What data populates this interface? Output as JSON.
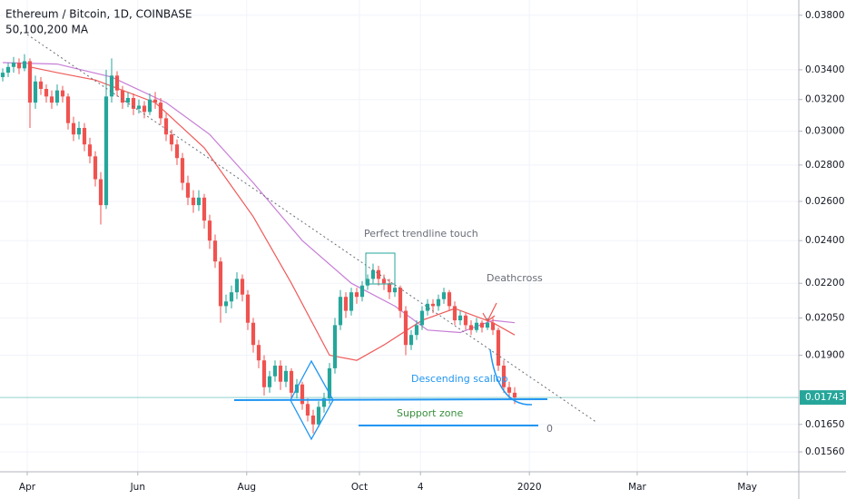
{
  "chart_data": {
    "type": "candlestick",
    "title": "Ethereum / Bitcoin, 1D, COINBASE",
    "subtitle": "50,100,200 MA",
    "log_scale": true,
    "grid": true,
    "up_color": "#26a69a",
    "down_color": "#ef5350",
    "xlim": [
      -0.5,
      146.17
    ],
    "xticks": [
      {
        "value": 4.5,
        "label": "Apr"
      },
      {
        "value": 24.8,
        "label": "Jun"
      },
      {
        "value": 44.8,
        "label": "Aug"
      },
      {
        "value": 65.5,
        "label": "Oct"
      },
      {
        "value": 76.7,
        "label": "4"
      },
      {
        "value": 96.7,
        "label": "2020"
      },
      {
        "value": 116.5,
        "label": "Mar"
      },
      {
        "value": 136.7,
        "label": "May"
      }
    ],
    "ylim": [
      0.01498,
      0.0392
    ],
    "yticks": [
      {
        "value": 0.038,
        "label": "0.03800"
      },
      {
        "value": 0.034,
        "label": "0.03400"
      },
      {
        "value": 0.032,
        "label": "0.03200"
      },
      {
        "value": 0.03,
        "label": "0.03000"
      },
      {
        "value": 0.028,
        "label": "0.02800"
      },
      {
        "value": 0.026,
        "label": "0.02600"
      },
      {
        "value": 0.024,
        "label": "0.02400"
      },
      {
        "value": 0.022,
        "label": "0.02200"
      },
      {
        "value": 0.0205,
        "label": "0.02050"
      },
      {
        "value": 0.019,
        "label": "0.01900"
      },
      {
        "value": 0.0165,
        "label": "0.01650"
      },
      {
        "value": 0.0156,
        "label": "0.01560"
      }
    ],
    "last_price": {
      "value": 0.01743,
      "label": "0.01743",
      "color": "#26a69a"
    },
    "ohlc": [
      [
        0.0335,
        0.0341,
        0.0332,
        0.0338
      ],
      [
        0.0338,
        0.0345,
        0.0335,
        0.0342
      ],
      [
        0.0342,
        0.0349,
        0.0338,
        0.0345
      ],
      [
        0.0345,
        0.0348,
        0.0337,
        0.0341
      ],
      [
        0.0341,
        0.0351,
        0.0339,
        0.0346
      ],
      [
        0.0346,
        0.0348,
        0.0302,
        0.0318
      ],
      [
        0.0318,
        0.0336,
        0.0314,
        0.0332
      ],
      [
        0.0332,
        0.0335,
        0.0323,
        0.0327
      ],
      [
        0.0327,
        0.033,
        0.0318,
        0.0322
      ],
      [
        0.0322,
        0.0326,
        0.0314,
        0.0318
      ],
      [
        0.0318,
        0.033,
        0.0316,
        0.0326
      ],
      [
        0.0326,
        0.0329,
        0.0318,
        0.0322
      ],
      [
        0.0322,
        0.0324,
        0.0301,
        0.0305
      ],
      [
        0.0305,
        0.0309,
        0.0294,
        0.0298
      ],
      [
        0.0298,
        0.0306,
        0.0295,
        0.0302
      ],
      [
        0.0302,
        0.0305,
        0.0288,
        0.0292
      ],
      [
        0.0292,
        0.0296,
        0.0281,
        0.0285
      ],
      [
        0.0285,
        0.0288,
        0.0268,
        0.0272
      ],
      [
        0.0272,
        0.0276,
        0.0248,
        0.0258
      ],
      [
        0.0258,
        0.034,
        0.0256,
        0.0322
      ],
      [
        0.0322,
        0.0348,
        0.0318,
        0.0336
      ],
      [
        0.0336,
        0.0339,
        0.0322,
        0.0326
      ],
      [
        0.0326,
        0.0329,
        0.0314,
        0.0318
      ],
      [
        0.0318,
        0.0325,
        0.0315,
        0.0321
      ],
      [
        0.0321,
        0.0324,
        0.031,
        0.0314
      ],
      [
        0.0314,
        0.032,
        0.0311,
        0.0316
      ],
      [
        0.0316,
        0.0319,
        0.0308,
        0.0312
      ],
      [
        0.0312,
        0.0324,
        0.031,
        0.032
      ],
      [
        0.032,
        0.0325,
        0.0314,
        0.0318
      ],
      [
        0.0318,
        0.0321,
        0.0304,
        0.0308
      ],
      [
        0.0308,
        0.0311,
        0.0294,
        0.0298
      ],
      [
        0.0298,
        0.0301,
        0.0288,
        0.0292
      ],
      [
        0.0292,
        0.0295,
        0.028,
        0.0284
      ],
      [
        0.0284,
        0.0287,
        0.0266,
        0.027
      ],
      [
        0.027,
        0.0274,
        0.0258,
        0.0262
      ],
      [
        0.0262,
        0.0266,
        0.0254,
        0.0258
      ],
      [
        0.0258,
        0.0266,
        0.0255,
        0.0262
      ],
      [
        0.0262,
        0.0264,
        0.0246,
        0.025
      ],
      [
        0.025,
        0.0253,
        0.0236,
        0.024
      ],
      [
        0.024,
        0.0243,
        0.0227,
        0.023
      ],
      [
        0.023,
        0.0232,
        0.0203,
        0.021
      ],
      [
        0.021,
        0.0215,
        0.0207,
        0.0212
      ],
      [
        0.0212,
        0.0219,
        0.0209,
        0.0216
      ],
      [
        0.0216,
        0.0225,
        0.0213,
        0.0222
      ],
      [
        0.0222,
        0.0224,
        0.0212,
        0.0215
      ],
      [
        0.0215,
        0.0217,
        0.02,
        0.0203
      ],
      [
        0.0203,
        0.0205,
        0.0191,
        0.0194
      ],
      [
        0.0194,
        0.0196,
        0.0185,
        0.0188
      ],
      [
        0.0188,
        0.019,
        0.0175,
        0.0178
      ],
      [
        0.0178,
        0.0184,
        0.0176,
        0.0182
      ],
      [
        0.0182,
        0.0188,
        0.018,
        0.0186
      ],
      [
        0.0186,
        0.0188,
        0.0177,
        0.018
      ],
      [
        0.018,
        0.0186,
        0.0178,
        0.0184
      ],
      [
        0.0184,
        0.0185,
        0.0174,
        0.0176
      ],
      [
        0.0176,
        0.0181,
        0.0174,
        0.0179
      ],
      [
        0.0179,
        0.018,
        0.017,
        0.0172
      ],
      [
        0.0172,
        0.0174,
        0.0166,
        0.0168
      ],
      [
        0.0168,
        0.017,
        0.0162,
        0.0165
      ],
      [
        0.0165,
        0.0173,
        0.0164,
        0.0171
      ],
      [
        0.0171,
        0.0176,
        0.0169,
        0.0174
      ],
      [
        0.0174,
        0.0187,
        0.0172,
        0.0185
      ],
      [
        0.0185,
        0.0205,
        0.0183,
        0.0202
      ],
      [
        0.0202,
        0.0217,
        0.02,
        0.0214
      ],
      [
        0.0214,
        0.0216,
        0.0205,
        0.0208
      ],
      [
        0.0208,
        0.0218,
        0.0206,
        0.0216
      ],
      [
        0.0216,
        0.0218,
        0.0211,
        0.0214
      ],
      [
        0.0214,
        0.0221,
        0.0212,
        0.0219
      ],
      [
        0.0219,
        0.0224,
        0.0217,
        0.0222
      ],
      [
        0.0222,
        0.0229,
        0.022,
        0.0226
      ],
      [
        0.0226,
        0.0228,
        0.0219,
        0.0222
      ],
      [
        0.0222,
        0.0224,
        0.0217,
        0.022
      ],
      [
        0.022,
        0.0222,
        0.0213,
        0.0216
      ],
      [
        0.0216,
        0.022,
        0.0214,
        0.0218
      ],
      [
        0.0218,
        0.0219,
        0.0205,
        0.0208
      ],
      [
        0.0208,
        0.021,
        0.019,
        0.0194
      ],
      [
        0.0194,
        0.02,
        0.0192,
        0.0198
      ],
      [
        0.0198,
        0.0204,
        0.0196,
        0.0202
      ],
      [
        0.0202,
        0.021,
        0.02,
        0.0208
      ],
      [
        0.0208,
        0.0213,
        0.0206,
        0.0211
      ],
      [
        0.0211,
        0.0213,
        0.0207,
        0.021
      ],
      [
        0.021,
        0.0215,
        0.0208,
        0.0213
      ],
      [
        0.0213,
        0.0218,
        0.0211,
        0.0216
      ],
      [
        0.0216,
        0.0217,
        0.0208,
        0.021
      ],
      [
        0.021,
        0.0212,
        0.0202,
        0.0204
      ],
      [
        0.0204,
        0.0208,
        0.0202,
        0.0206
      ],
      [
        0.0206,
        0.0207,
        0.02,
        0.0202
      ],
      [
        0.0202,
        0.0204,
        0.0198,
        0.02
      ],
      [
        0.02,
        0.0205,
        0.0199,
        0.0203
      ],
      [
        0.0203,
        0.0204,
        0.0199,
        0.0201
      ],
      [
        0.0201,
        0.0205,
        0.02,
        0.0203
      ],
      [
        0.0203,
        0.0205,
        0.0198,
        0.02
      ],
      [
        0.02,
        0.0201,
        0.0184,
        0.0186
      ],
      [
        0.0186,
        0.0188,
        0.0176,
        0.0178
      ],
      [
        0.0178,
        0.018,
        0.0174,
        0.0176
      ],
      [
        0.0176,
        0.0178,
        0.0172,
        0.01743
      ]
    ],
    "ma": [
      {
        "color": "#f05a5a",
        "points": [
          [
            5,
            0.0342
          ],
          [
            10,
            0.0338
          ],
          [
            17,
            0.0333
          ],
          [
            28,
            0.0318
          ],
          [
            37,
            0.029
          ],
          [
            46,
            0.0252
          ],
          [
            53,
            0.022
          ],
          [
            60,
            0.019
          ],
          [
            65,
            0.0188
          ],
          [
            70,
            0.0194
          ],
          [
            77,
            0.0204
          ],
          [
            83,
            0.0209
          ],
          [
            90,
            0.0203
          ],
          [
            94,
            0.0198
          ]
        ]
      },
      {
        "color": "#c77dd6",
        "points": [
          [
            0,
            0.0345
          ],
          [
            10,
            0.0344
          ],
          [
            20,
            0.0335
          ],
          [
            30,
            0.0318
          ],
          [
            38,
            0.0298
          ],
          [
            46,
            0.027
          ],
          [
            55,
            0.024
          ],
          [
            64,
            0.022
          ],
          [
            72,
            0.021
          ],
          [
            78,
            0.02
          ],
          [
            84,
            0.0199
          ],
          [
            90,
            0.0204
          ],
          [
            94,
            0.0203
          ]
        ]
      }
    ],
    "annotations": {
      "trendline_touch": "Perfect trendline touch",
      "deathcross": "Deathcross",
      "scallop": "Descending scallop",
      "support": "Support zone",
      "zero": "0"
    }
  }
}
